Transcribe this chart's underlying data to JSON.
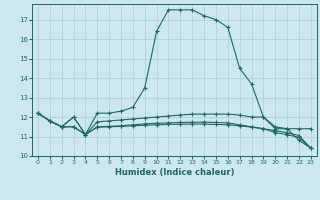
{
  "xlabel": "Humidex (Indice chaleur)",
  "bg_color": "#cce8ec",
  "grid_color": "#aacdd2",
  "line_color": "#1a6b60",
  "xlim": [
    -0.5,
    23.5
  ],
  "ylim": [
    10.0,
    17.8
  ],
  "yticks": [
    10,
    11,
    12,
    13,
    14,
    15,
    16,
    17
  ],
  "xticks": [
    0,
    1,
    2,
    3,
    4,
    5,
    6,
    7,
    8,
    9,
    10,
    11,
    12,
    13,
    14,
    15,
    16,
    17,
    18,
    19,
    20,
    21,
    22,
    23
  ],
  "series": [
    {
      "x": [
        0,
        1,
        2,
        3,
        4,
        5,
        6,
        7,
        8,
        9,
        10,
        11,
        12,
        13,
        14,
        15,
        16,
        17,
        18,
        19,
        20,
        21,
        22,
        23
      ],
      "y": [
        12.2,
        11.8,
        11.5,
        12.0,
        11.1,
        12.2,
        12.2,
        12.3,
        12.5,
        13.5,
        16.4,
        17.5,
        17.5,
        17.5,
        17.2,
        17.0,
        16.6,
        14.5,
        13.7,
        12.0,
        11.5,
        11.4,
        10.8,
        10.4
      ]
    },
    {
      "x": [
        0,
        1,
        2,
        3,
        4,
        5,
        6,
        7,
        8,
        9,
        10,
        11,
        12,
        13,
        14,
        15,
        16,
        17,
        18,
        19,
        20,
        21,
        22,
        23
      ],
      "y": [
        12.2,
        11.8,
        11.5,
        12.0,
        11.1,
        11.75,
        11.8,
        11.85,
        11.9,
        11.95,
        12.0,
        12.05,
        12.1,
        12.15,
        12.15,
        12.15,
        12.15,
        12.1,
        12.0,
        12.0,
        11.4,
        11.4,
        11.4,
        11.4
      ]
    },
    {
      "x": [
        0,
        1,
        2,
        3,
        4,
        5,
        6,
        7,
        8,
        9,
        10,
        11,
        12,
        13,
        14,
        15,
        16,
        17,
        18,
        19,
        20,
        21,
        22,
        23
      ],
      "y": [
        12.2,
        11.8,
        11.5,
        11.5,
        11.1,
        11.5,
        11.52,
        11.55,
        11.6,
        11.65,
        11.68,
        11.7,
        11.72,
        11.73,
        11.74,
        11.72,
        11.7,
        11.6,
        11.5,
        11.4,
        11.3,
        11.2,
        11.05,
        10.4
      ]
    },
    {
      "x": [
        0,
        1,
        2,
        3,
        4,
        5,
        6,
        7,
        8,
        9,
        10,
        11,
        12,
        13,
        14,
        15,
        16,
        17,
        18,
        19,
        20,
        21,
        22,
        23
      ],
      "y": [
        12.2,
        11.8,
        11.5,
        11.5,
        11.1,
        11.48,
        11.5,
        11.52,
        11.55,
        11.58,
        11.6,
        11.62,
        11.63,
        11.64,
        11.64,
        11.62,
        11.6,
        11.55,
        11.48,
        11.4,
        11.2,
        11.1,
        10.95,
        10.4
      ]
    }
  ]
}
